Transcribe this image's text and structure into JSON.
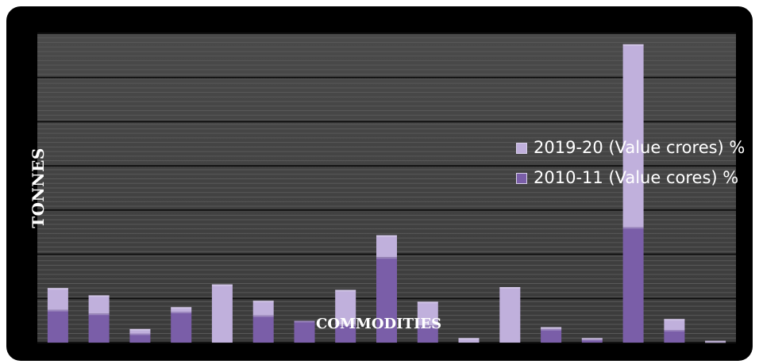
{
  "chart_data": {
    "type": "bar",
    "stacked": true,
    "title": "",
    "xlabel": "COMMODITIES",
    "ylabel": "TONNES",
    "ylim": [
      0,
      340
    ],
    "grid": true,
    "legend_position": "right",
    "categories": [
      "",
      "",
      "",
      "",
      "",
      "",
      "",
      "",
      "",
      "",
      "",
      "",
      "",
      "",
      "",
      "",
      ""
    ],
    "series": [
      {
        "name": "2010-11 (Value cores) %",
        "color": "#7a5ea8",
        "values": [
          36,
          32,
          10,
          34,
          0,
          30,
          24,
          20,
          94,
          19,
          0,
          0,
          15,
          4,
          127,
          14,
          1
        ]
      },
      {
        "name": "2019-20 (Value crores) %",
        "color": "#c0b0dc",
        "values": [
          24,
          20,
          5,
          5,
          64,
          16,
          0,
          38,
          24,
          26,
          5,
          61,
          2,
          1,
          201,
          12,
          1
        ]
      }
    ]
  }
}
